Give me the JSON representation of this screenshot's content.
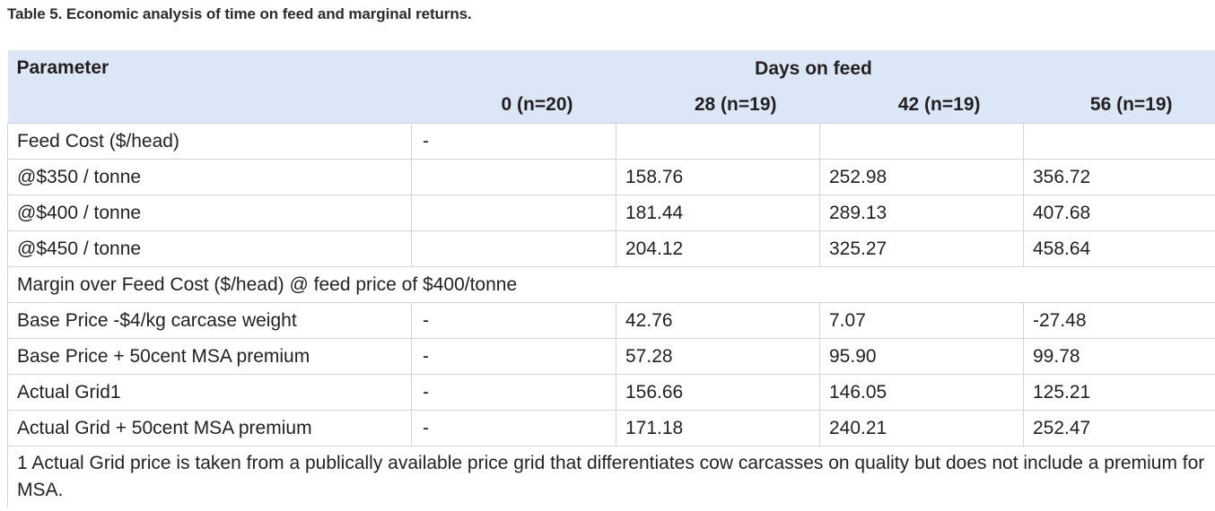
{
  "caption": "Table 5. Economic analysis of time on feed and marginal returns.",
  "header": {
    "parameter": "Parameter",
    "days_on_feed": "Days on feed",
    "columns": [
      "0 (n=20)",
      "28 (n=19)",
      "42 (n=19)",
      "56 (n=19)"
    ]
  },
  "rows": [
    {
      "label": "Feed Cost ($/head)",
      "d0": "-",
      "d28": "",
      "d42": "",
      "d56": ""
    },
    {
      "label": "@$350 / tonne",
      "d0": "",
      "d28": "158.76",
      "d42": "252.98",
      "d56": "356.72"
    },
    {
      "label": "@$400 / tonne",
      "d0": "",
      "d28": "181.44",
      "d42": "289.13",
      "d56": "407.68"
    },
    {
      "label": "@$450 / tonne",
      "d0": "",
      "d28": "204.12",
      "d42": "325.27",
      "d56": "458.64"
    }
  ],
  "section_label": "Margin over Feed Cost ($/head) @ feed price of $400/tonne",
  "margin_rows": [
    {
      "label": "Base Price -$4/kg carcase weight",
      "d0": "-",
      "d28": "42.76",
      "d42": "7.07",
      "d56": "-27.48"
    },
    {
      "label": "Base Price + 50cent MSA premium",
      "d0": "-",
      "d28": "57.28",
      "d42": "95.90",
      "d56": "99.78"
    },
    {
      "label": "Actual Grid1",
      "d0": "-",
      "d28": "156.66",
      "d42": "146.05",
      "d56": "125.21"
    },
    {
      "label": "Actual Grid + 50cent MSA premium",
      "d0": "-",
      "d28": "171.18",
      "d42": "240.21",
      "d56": "252.47"
    }
  ],
  "footnote": "1 Actual Grid price is taken from a publically available price grid that differentiates cow carcasses on quality but does not include a premium for MSA."
}
